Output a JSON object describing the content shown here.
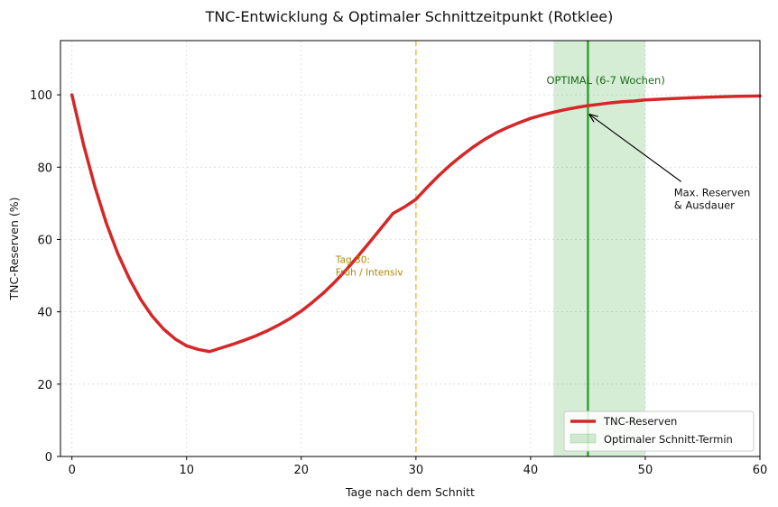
{
  "chart_data": {
    "type": "line",
    "title": "TNC-Entwicklung & Optimaler Schnittzeitpunkt (Rotklee)",
    "xlabel": "Tage nach dem Schnitt",
    "ylabel": "TNC-Reserven (%)",
    "xlim": [
      -1,
      60
    ],
    "ylim": [
      0,
      115
    ],
    "xticks": [
      0,
      10,
      20,
      30,
      40,
      50,
      60
    ],
    "yticks": [
      0,
      20,
      40,
      60,
      80,
      100
    ],
    "grid": true,
    "legend_position": "lower-right",
    "series": [
      {
        "name": "TNC-Reserven",
        "color": "#d62728",
        "x": [
          0,
          1,
          2,
          3,
          4,
          5,
          6,
          7,
          8,
          9,
          10,
          11,
          12,
          13,
          14,
          15,
          16,
          17,
          18,
          19,
          20,
          21,
          22,
          23,
          24,
          25,
          26,
          27,
          28,
          29,
          30,
          31,
          32,
          33,
          34,
          35,
          36,
          37,
          38,
          39,
          40,
          41,
          42,
          43,
          44,
          45,
          46,
          47,
          48,
          49,
          50,
          52,
          54,
          56,
          58,
          60
        ],
        "y": [
          100,
          86.4,
          74.6,
          64.5,
          56.1,
          49.2,
          43.4,
          38.8,
          35.2,
          32.5,
          30.6,
          29.6,
          29.0,
          30.0,
          31.0,
          32.1,
          33.3,
          34.7,
          36.3,
          38.1,
          40.2,
          42.7,
          45.4,
          48.5,
          51.9,
          55.6,
          59.4,
          63.3,
          67.2,
          69.0,
          71.1,
          74.5,
          77.7,
          80.6,
          83.2,
          85.6,
          87.7,
          89.5,
          91.0,
          92.3,
          93.5,
          94.4,
          95.2,
          95.9,
          96.5,
          97.0,
          97.4,
          97.8,
          98.1,
          98.3,
          98.6,
          98.9,
          99.2,
          99.4,
          99.6,
          99.7
        ]
      }
    ],
    "shaded_region": {
      "x_start": 42,
      "x_end": 50,
      "color": "#2ca02c",
      "legend_label": "Optimaler Schnitt-Termin",
      "label": "OPTIMAL (6-7 Wochen)"
    },
    "vertical_lines": [
      {
        "x": 30,
        "color": "#ffa500",
        "style": "dashed",
        "label": "Tag 30:\nFrüh / Intensiv"
      },
      {
        "x": 45,
        "color": "#2ca02c",
        "style": "solid"
      }
    ],
    "annotations": [
      {
        "text": "Max. Reserven\n& Ausdauer",
        "text_x": 52.5,
        "text_y": 72,
        "arrow_to_x": 45,
        "arrow_to_y": 95
      }
    ],
    "legend": [
      "TNC-Reserven",
      "Optimaler Schnitt-Termin"
    ]
  }
}
